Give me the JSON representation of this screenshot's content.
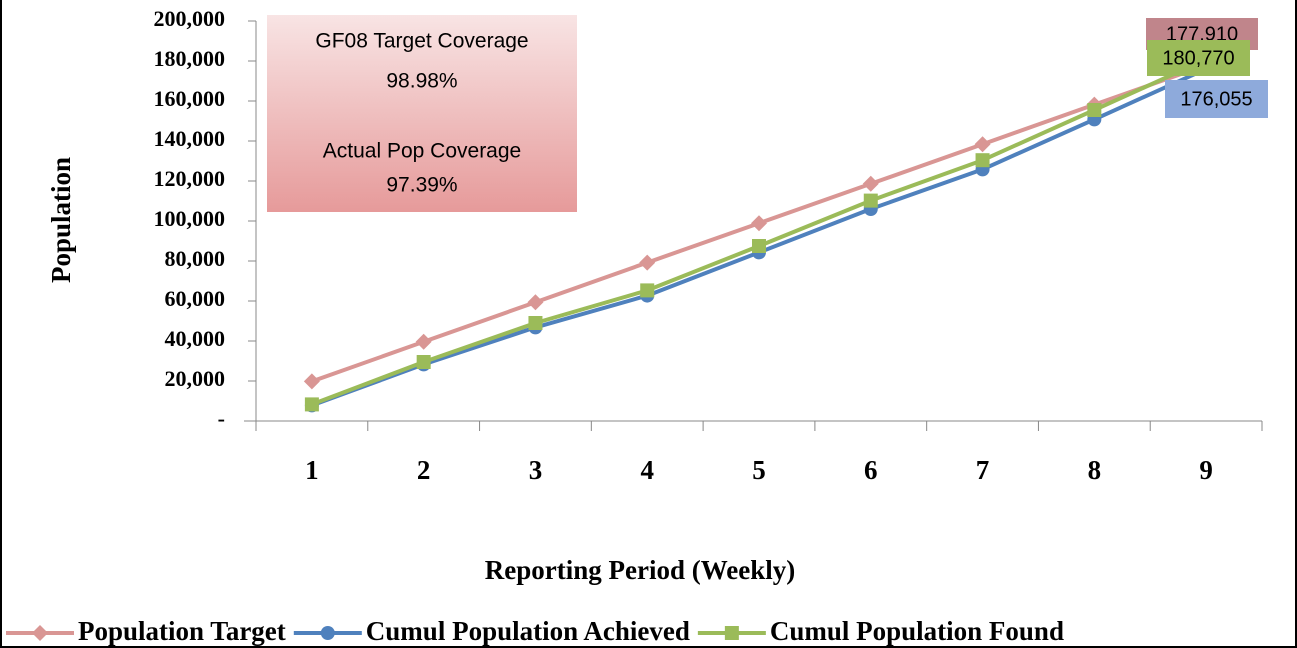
{
  "chart_data": {
    "type": "line",
    "x_label": "Reporting Period (Weekly)",
    "y_label": "Population",
    "categories": [
      "1",
      "2",
      "3",
      "4",
      "5",
      "6",
      "7",
      "8",
      "9"
    ],
    "ylim": [
      0,
      200000
    ],
    "yticks": [
      {
        "value": 0,
        "label": "-"
      },
      {
        "value": 20000,
        "label": "20,000"
      },
      {
        "value": 40000,
        "label": "40,000"
      },
      {
        "value": 60000,
        "label": "60,000"
      },
      {
        "value": 80000,
        "label": "80,000"
      },
      {
        "value": 100000,
        "label": "100,000"
      },
      {
        "value": 120000,
        "label": "120,000"
      },
      {
        "value": 140000,
        "label": "140,000"
      },
      {
        "value": 160000,
        "label": "160,000"
      },
      {
        "value": 180000,
        "label": "180,000"
      },
      {
        "value": 200000,
        "label": "200,000"
      }
    ],
    "legend": "bottom",
    "annotations": [
      "GF08 Target Coverage",
      "98.98%",
      "Actual Pop Coverage",
      "97.39%"
    ],
    "series": [
      {
        "name": "Population Target",
        "color": "#d99694",
        "marker": "diamond",
        "values": [
          19800,
          39600,
          59400,
          79200,
          98900,
          118600,
          138400,
          158200,
          177910
        ],
        "value_labels": [
          null,
          null,
          null,
          null,
          null,
          null,
          null,
          null,
          "177.910"
        ],
        "label_color": "#c0858b"
      },
      {
        "name": "Cumul Population Achieved",
        "color": "#4f81bd",
        "marker": "circle",
        "values": [
          7800,
          28300,
          46800,
          62700,
          84300,
          106000,
          125800,
          150800,
          176055
        ],
        "value_labels": [
          null,
          null,
          null,
          null,
          null,
          null,
          null,
          null,
          "176,055"
        ],
        "label_color": "#8eaadb"
      },
      {
        "name": "Cumul Population Found",
        "color": "#9bbb59",
        "marker": "square",
        "values": [
          8300,
          29500,
          49000,
          65300,
          87500,
          110200,
          130400,
          155500,
          180770
        ],
        "value_labels": [
          null,
          null,
          null,
          null,
          null,
          null,
          null,
          null,
          "180,770"
        ],
        "label_color": "#9bbb59"
      }
    ]
  }
}
